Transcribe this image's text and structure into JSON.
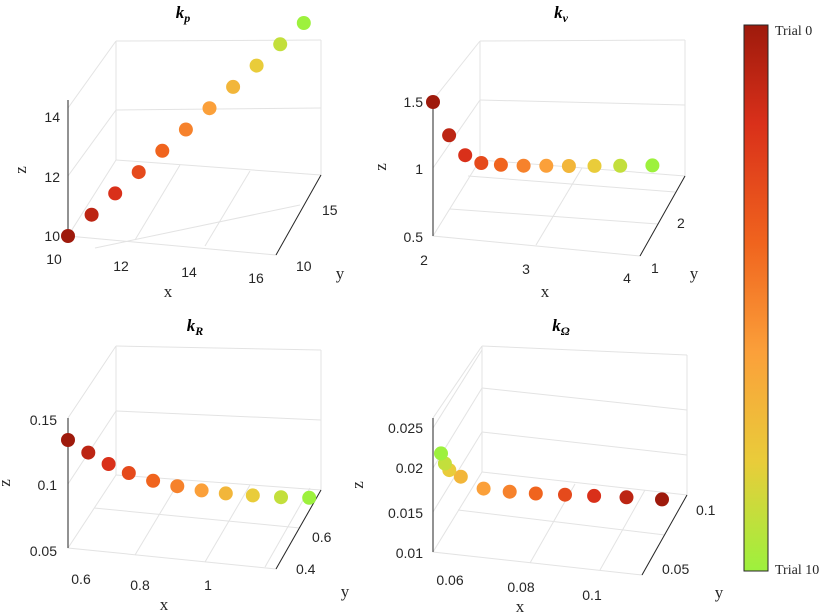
{
  "chart_data": [
    {
      "type": "scatter3d",
      "title": "k",
      "title_sub": "p",
      "xlabel": "x",
      "ylabel": "y",
      "zlabel": "z",
      "xlim": [
        10,
        16
      ],
      "ylim": [
        10,
        16
      ],
      "zlim": [
        10,
        15
      ],
      "xticks": [
        "10",
        "12",
        "14",
        "16"
      ],
      "yticks": [
        "10",
        "15"
      ],
      "zticks": [
        "10",
        "12",
        "14"
      ],
      "grid": true,
      "points": [
        {
          "x": 10.0,
          "y": 10.0,
          "z": 10.0
        },
        {
          "x": 10.6,
          "y": 10.6,
          "z": 10.6
        },
        {
          "x": 11.2,
          "y": 11.2,
          "z": 11.2
        },
        {
          "x": 11.8,
          "y": 11.8,
          "z": 11.8
        },
        {
          "x": 12.4,
          "y": 12.4,
          "z": 12.4
        },
        {
          "x": 13.0,
          "y": 13.0,
          "z": 13.0
        },
        {
          "x": 13.6,
          "y": 13.6,
          "z": 13.6
        },
        {
          "x": 14.2,
          "y": 14.2,
          "z": 14.2
        },
        {
          "x": 14.8,
          "y": 14.8,
          "z": 14.8
        },
        {
          "x": 15.4,
          "y": 15.4,
          "z": 15.4
        },
        {
          "x": 16.0,
          "y": 16.0,
          "z": 16.0
        }
      ]
    },
    {
      "type": "scatter3d",
      "title": "k",
      "title_sub": "v",
      "xlabel": "x",
      "ylabel": "y",
      "zlabel": "z",
      "xlim": [
        2,
        4
      ],
      "ylim": [
        1,
        2.5
      ],
      "zlim": [
        0.5,
        1.5
      ],
      "xticks": [
        "2",
        "3",
        "4"
      ],
      "yticks": [
        "1",
        "2"
      ],
      "zticks": [
        "0.5",
        "1",
        "1.5"
      ],
      "grid": true,
      "points": [
        {
          "x": 2.0,
          "y": 1.0,
          "z": 1.5
        },
        {
          "x": 2.15,
          "y": 1.1,
          "z": 1.25
        },
        {
          "x": 2.3,
          "y": 1.2,
          "z": 1.1
        },
        {
          "x": 2.45,
          "y": 1.3,
          "z": 1.04
        },
        {
          "x": 2.6,
          "y": 1.45,
          "z": 1.02
        },
        {
          "x": 2.8,
          "y": 1.6,
          "z": 1.01
        },
        {
          "x": 3.0,
          "y": 1.75,
          "z": 1.005
        },
        {
          "x": 3.2,
          "y": 1.9,
          "z": 1.0
        },
        {
          "x": 3.45,
          "y": 2.05,
          "z": 1.0
        },
        {
          "x": 3.7,
          "y": 2.2,
          "z": 1.0
        },
        {
          "x": 4.0,
          "y": 2.4,
          "z": 1.0
        }
      ]
    },
    {
      "type": "scatter3d",
      "title": "k",
      "title_sub": "R",
      "xlabel": "x",
      "ylabel": "y",
      "zlabel": "z",
      "xlim": [
        0.5,
        1.2
      ],
      "ylim": [
        0.3,
        0.7
      ],
      "zlim": [
        0.05,
        0.15
      ],
      "xticks": [
        "0.6",
        "0.8",
        "1"
      ],
      "yticks": [
        "0.4",
        "0.6"
      ],
      "zticks": [
        "0.05",
        "0.1",
        "0.15"
      ],
      "grid": true,
      "points": [
        {
          "x": 0.5,
          "y": 0.3,
          "z": 0.14
        },
        {
          "x": 0.56,
          "y": 0.33,
          "z": 0.13
        },
        {
          "x": 0.62,
          "y": 0.36,
          "z": 0.121
        },
        {
          "x": 0.68,
          "y": 0.39,
          "z": 0.114
        },
        {
          "x": 0.75,
          "y": 0.43,
          "z": 0.108
        },
        {
          "x": 0.82,
          "y": 0.47,
          "z": 0.104
        },
        {
          "x": 0.89,
          "y": 0.51,
          "z": 0.101
        },
        {
          "x": 0.96,
          "y": 0.55,
          "z": 0.099
        },
        {
          "x": 1.04,
          "y": 0.59,
          "z": 0.098
        },
        {
          "x": 1.12,
          "y": 0.64,
          "z": 0.097
        },
        {
          "x": 1.2,
          "y": 0.69,
          "z": 0.097
        }
      ]
    },
    {
      "type": "scatter3d",
      "title": "k",
      "title_sub": "Ω",
      "xlabel": "x",
      "ylabel": "y",
      "zlabel": "z",
      "xlim": [
        0.055,
        0.115
      ],
      "ylim": [
        0.03,
        0.11
      ],
      "zlim": [
        0.01,
        0.027
      ],
      "xticks": [
        "0.06",
        "0.08",
        "0.1"
      ],
      "yticks": [
        "0.05",
        "0.1"
      ],
      "zticks": [
        "0.01",
        "0.015",
        "0.02",
        "0.025"
      ],
      "grid": true,
      "points": [
        {
          "x": 0.115,
          "y": 0.11,
          "z": 0.0175
        },
        {
          "x": 0.105,
          "y": 0.1,
          "z": 0.0178
        },
        {
          "x": 0.096,
          "y": 0.09,
          "z": 0.018
        },
        {
          "x": 0.088,
          "y": 0.08,
          "z": 0.0182
        },
        {
          "x": 0.08,
          "y": 0.07,
          "z": 0.0184
        },
        {
          "x": 0.073,
          "y": 0.06,
          "z": 0.0187
        },
        {
          "x": 0.066,
          "y": 0.05,
          "z": 0.0192
        },
        {
          "x": 0.06,
          "y": 0.04,
          "z": 0.021
        },
        {
          "x": 0.057,
          "y": 0.035,
          "z": 0.022
        },
        {
          "x": 0.056,
          "y": 0.032,
          "z": 0.023
        },
        {
          "x": 0.055,
          "y": 0.03,
          "z": 0.0245
        }
      ]
    }
  ],
  "colorbar": {
    "top_label": "Trial 0",
    "bottom_label": "Trial 10",
    "colors": [
      "#9e1a0c",
      "#d9301a",
      "#f0641e",
      "#fba03a",
      "#e9cc3a",
      "#9df13d"
    ]
  }
}
